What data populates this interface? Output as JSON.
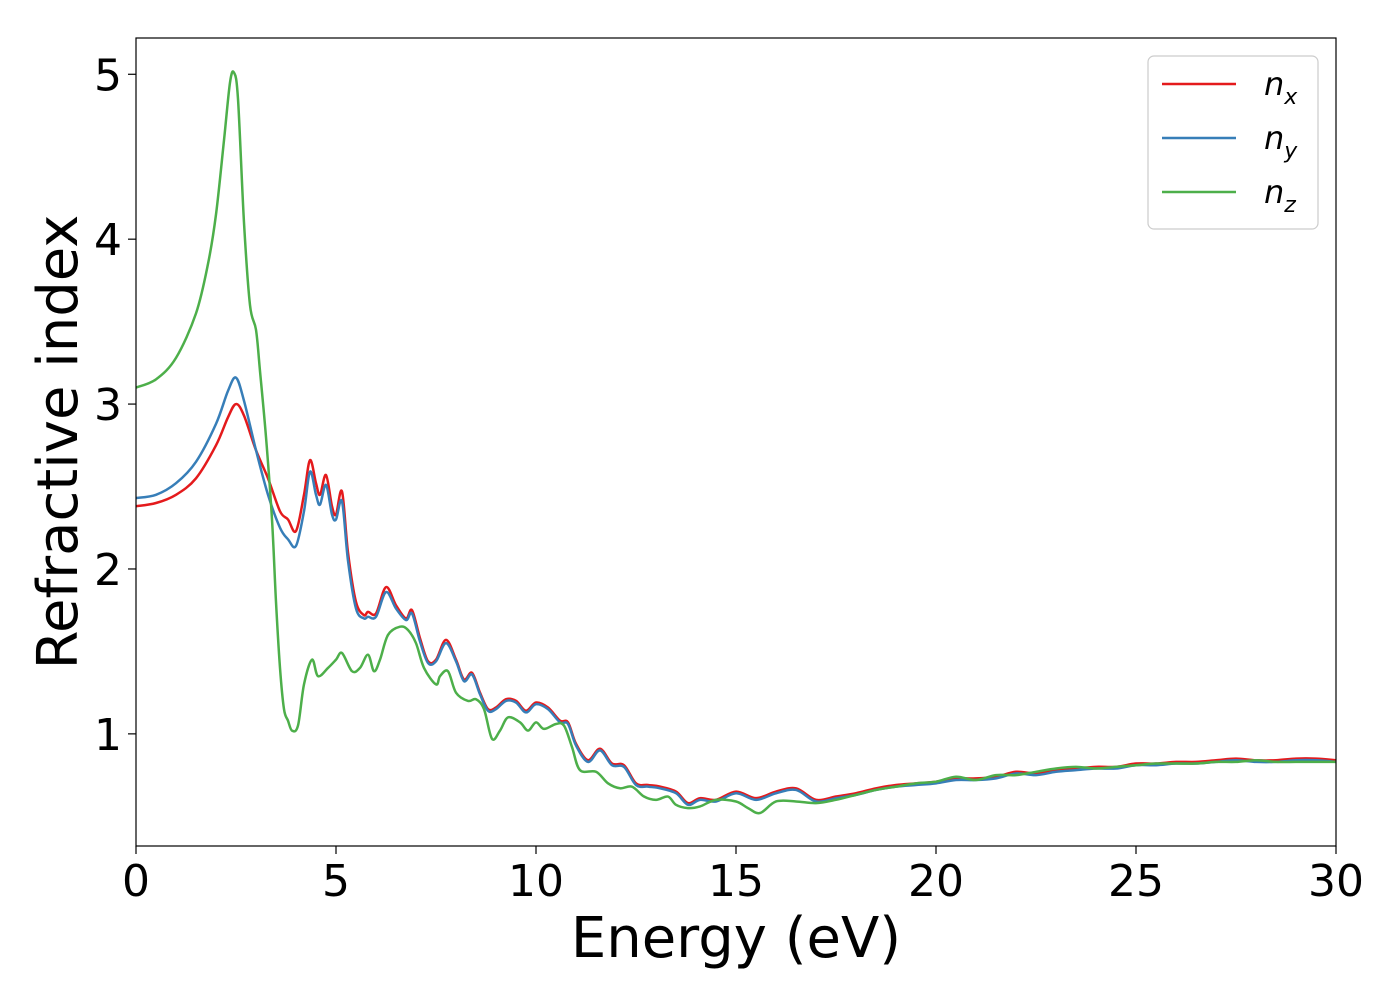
{
  "chart_data": {
    "type": "line",
    "title": "",
    "xlabel": "Energy (eV)",
    "ylabel": "Refractive index",
    "xlim": [
      0,
      30
    ],
    "ylim": [
      0.32,
      5.22
    ],
    "xticks": [
      0,
      5,
      10,
      15,
      20,
      25,
      30
    ],
    "yticks": [
      1,
      2,
      3,
      4,
      5
    ],
    "xtick_labels": [
      "0",
      "5",
      "10",
      "15",
      "20",
      "25",
      "30"
    ],
    "ytick_labels": [
      "1",
      "2",
      "3",
      "4",
      "5"
    ],
    "grid": false,
    "legend": "top-right",
    "series": [
      {
        "name": "n",
        "sub": "x",
        "color": "#e41a1c",
        "x": [
          0,
          0.5,
          1.0,
          1.5,
          2.0,
          2.3,
          2.5,
          2.7,
          3.0,
          3.3,
          3.6,
          3.8,
          4.0,
          4.2,
          4.35,
          4.5,
          4.6,
          4.75,
          4.9,
          5.0,
          5.15,
          5.3,
          5.5,
          5.7,
          5.8,
          6.0,
          6.25,
          6.5,
          6.75,
          6.9,
          7.1,
          7.3,
          7.5,
          7.75,
          8.0,
          8.2,
          8.4,
          8.6,
          8.8,
          9.0,
          9.25,
          9.5,
          9.75,
          10.0,
          10.3,
          10.6,
          10.8,
          11.0,
          11.3,
          11.6,
          11.9,
          12.2,
          12.5,
          12.8,
          13.1,
          13.5,
          13.8,
          14.1,
          14.5,
          15.0,
          15.5,
          16.0,
          16.5,
          17.0,
          17.5,
          18.0,
          18.5,
          19.0,
          19.5,
          20.0,
          20.5,
          21.0,
          21.5,
          22.0,
          22.5,
          23.0,
          23.5,
          24.0,
          24.5,
          25.0,
          25.5,
          26.0,
          26.5,
          27.0,
          27.5,
          28.0,
          28.5,
          29.0,
          29.5,
          30.0
        ],
        "y": [
          2.38,
          2.4,
          2.45,
          2.55,
          2.75,
          2.92,
          3.0,
          2.93,
          2.72,
          2.55,
          2.35,
          2.3,
          2.23,
          2.45,
          2.66,
          2.52,
          2.45,
          2.57,
          2.38,
          2.33,
          2.47,
          2.1,
          1.8,
          1.72,
          1.74,
          1.73,
          1.89,
          1.78,
          1.7,
          1.75,
          1.58,
          1.44,
          1.45,
          1.57,
          1.45,
          1.33,
          1.37,
          1.25,
          1.15,
          1.16,
          1.21,
          1.2,
          1.14,
          1.19,
          1.16,
          1.08,
          1.07,
          0.94,
          0.84,
          0.91,
          0.82,
          0.81,
          0.7,
          0.69,
          0.68,
          0.65,
          0.58,
          0.61,
          0.6,
          0.65,
          0.61,
          0.65,
          0.67,
          0.6,
          0.62,
          0.64,
          0.67,
          0.69,
          0.7,
          0.71,
          0.73,
          0.73,
          0.74,
          0.77,
          0.76,
          0.78,
          0.79,
          0.8,
          0.8,
          0.82,
          0.82,
          0.83,
          0.83,
          0.84,
          0.85,
          0.84,
          0.84,
          0.85,
          0.85,
          0.84
        ]
      },
      {
        "name": "n",
        "sub": "y",
        "color": "#377eb8",
        "x": [
          0,
          0.5,
          1.0,
          1.5,
          2.0,
          2.3,
          2.5,
          2.7,
          3.0,
          3.3,
          3.6,
          3.8,
          4.0,
          4.2,
          4.35,
          4.5,
          4.6,
          4.75,
          4.9,
          5.0,
          5.15,
          5.3,
          5.5,
          5.7,
          5.8,
          6.0,
          6.25,
          6.5,
          6.75,
          6.9,
          7.1,
          7.3,
          7.5,
          7.75,
          8.0,
          8.2,
          8.4,
          8.6,
          8.8,
          9.0,
          9.25,
          9.5,
          9.75,
          10.0,
          10.3,
          10.6,
          10.8,
          11.0,
          11.3,
          11.6,
          11.9,
          12.2,
          12.5,
          12.8,
          13.1,
          13.5,
          13.8,
          14.1,
          14.5,
          15.0,
          15.5,
          16.0,
          16.5,
          17.0,
          17.5,
          18.0,
          18.5,
          19.0,
          19.5,
          20.0,
          20.5,
          21.0,
          21.5,
          22.0,
          22.5,
          23.0,
          23.5,
          24.0,
          24.5,
          25.0,
          25.5,
          26.0,
          26.5,
          27.0,
          27.5,
          28.0,
          28.5,
          29.0,
          29.5,
          30.0
        ],
        "y": [
          2.43,
          2.45,
          2.52,
          2.65,
          2.88,
          3.08,
          3.16,
          3.02,
          2.72,
          2.45,
          2.25,
          2.18,
          2.14,
          2.35,
          2.59,
          2.45,
          2.39,
          2.51,
          2.33,
          2.3,
          2.41,
          2.05,
          1.76,
          1.7,
          1.71,
          1.71,
          1.86,
          1.76,
          1.69,
          1.73,
          1.56,
          1.43,
          1.44,
          1.55,
          1.44,
          1.32,
          1.36,
          1.24,
          1.14,
          1.15,
          1.2,
          1.19,
          1.13,
          1.18,
          1.15,
          1.07,
          1.06,
          0.93,
          0.83,
          0.9,
          0.81,
          0.8,
          0.69,
          0.68,
          0.67,
          0.64,
          0.57,
          0.6,
          0.59,
          0.64,
          0.6,
          0.64,
          0.66,
          0.59,
          0.61,
          0.63,
          0.66,
          0.68,
          0.69,
          0.7,
          0.72,
          0.72,
          0.73,
          0.76,
          0.75,
          0.77,
          0.78,
          0.79,
          0.79,
          0.81,
          0.81,
          0.82,
          0.82,
          0.83,
          0.84,
          0.83,
          0.83,
          0.84,
          0.84,
          0.83
        ]
      },
      {
        "name": "n",
        "sub": "z",
        "color": "#4daf4a",
        "x": [
          0,
          0.5,
          1.0,
          1.5,
          1.8,
          2.0,
          2.2,
          2.35,
          2.45,
          2.55,
          2.7,
          2.85,
          3.0,
          3.1,
          3.25,
          3.4,
          3.5,
          3.6,
          3.7,
          3.8,
          3.9,
          4.05,
          4.2,
          4.4,
          4.55,
          4.8,
          5.0,
          5.15,
          5.4,
          5.6,
          5.8,
          5.95,
          6.1,
          6.3,
          6.6,
          6.8,
          7.0,
          7.2,
          7.5,
          7.6,
          7.8,
          8.0,
          8.3,
          8.5,
          8.7,
          8.9,
          9.1,
          9.3,
          9.6,
          9.8,
          10.0,
          10.2,
          10.5,
          10.7,
          10.9,
          11.1,
          11.5,
          11.8,
          12.1,
          12.4,
          12.7,
          13.0,
          13.3,
          13.5,
          13.8,
          14.1,
          14.5,
          15.0,
          15.3,
          15.6,
          16.0,
          16.5,
          17.0,
          17.5,
          18.0,
          18.5,
          19.0,
          19.5,
          20.0,
          20.5,
          21.0,
          21.5,
          22.0,
          22.5,
          23.0,
          23.5,
          24.0,
          24.5,
          25.0,
          25.5,
          26.0,
          26.5,
          27.0,
          27.5,
          28.0,
          28.5,
          29.0,
          29.5,
          30.0
        ],
        "y": [
          3.1,
          3.15,
          3.28,
          3.55,
          3.85,
          4.15,
          4.6,
          4.95,
          5.01,
          4.85,
          4.1,
          3.6,
          3.45,
          3.2,
          2.8,
          2.3,
          1.8,
          1.4,
          1.15,
          1.08,
          1.02,
          1.05,
          1.3,
          1.45,
          1.35,
          1.4,
          1.45,
          1.49,
          1.38,
          1.4,
          1.48,
          1.38,
          1.45,
          1.6,
          1.65,
          1.63,
          1.55,
          1.4,
          1.3,
          1.35,
          1.38,
          1.25,
          1.2,
          1.21,
          1.15,
          0.97,
          1.02,
          1.1,
          1.07,
          1.02,
          1.07,
          1.03,
          1.06,
          1.05,
          0.92,
          0.78,
          0.77,
          0.7,
          0.67,
          0.68,
          0.62,
          0.6,
          0.62,
          0.57,
          0.55,
          0.56,
          0.6,
          0.59,
          0.55,
          0.52,
          0.59,
          0.59,
          0.58,
          0.6,
          0.63,
          0.66,
          0.68,
          0.7,
          0.71,
          0.74,
          0.72,
          0.75,
          0.75,
          0.77,
          0.79,
          0.8,
          0.79,
          0.8,
          0.81,
          0.82,
          0.82,
          0.82,
          0.83,
          0.83,
          0.84,
          0.83,
          0.83,
          0.83,
          0.83
        ]
      }
    ]
  }
}
